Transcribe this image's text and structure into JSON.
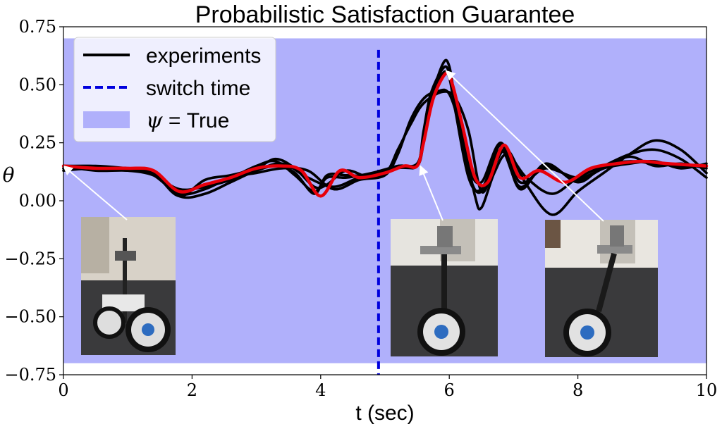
{
  "chart_data": {
    "type": "line",
    "title": "Probabilistic Satisfaction Guarantee",
    "xlabel": "t (sec)",
    "ylabel": "θ",
    "xlim": [
      0,
      10
    ],
    "ylim": [
      -0.75,
      0.75
    ],
    "x_ticks": [
      "0",
      "2",
      "4",
      "6",
      "8",
      "10"
    ],
    "y_ticks": [
      "0.75",
      "0.50",
      "0.25",
      "0.00",
      "−0.25",
      "−0.50",
      "−0.75"
    ],
    "x_tick_values": [
      0,
      2,
      4,
      6,
      8,
      10
    ],
    "y_tick_values": [
      0.75,
      0.5,
      0.25,
      0,
      -0.25,
      -0.5,
      -0.75
    ],
    "region": {
      "label_math": "ψ",
      "label_eq": " = ",
      "label_text": "True",
      "ymin": -0.7,
      "ymax": 0.7,
      "color": "#b0b0fb"
    },
    "switch_time": 4.9,
    "legend": {
      "position": "top-left",
      "entries": [
        "experiments",
        "switch time",
        "ψ = True"
      ]
    },
    "colors": {
      "experiments": "#000000",
      "switch": "#0000dd",
      "mean": "#e8000b",
      "region": "#b0b0fb"
    },
    "series": [
      {
        "name": "experiments",
        "x": [
          0,
          0.5,
          1,
          1.4,
          1.8,
          2.2,
          2.6,
          3,
          3.3,
          3.6,
          3.9,
          4.1,
          4.4,
          4.8,
          5.2,
          5.5,
          5.6,
          5.7,
          5.9,
          6,
          6.1,
          6.3,
          6.5,
          6.8,
          7.1,
          7.5,
          8,
          8.4,
          8.8,
          9.2,
          9.6,
          10
        ],
        "y": [
          0.15,
          0.15,
          0.14,
          0.13,
          0.04,
          0.07,
          0.1,
          0.15,
          0.17,
          0.11,
          0.04,
          0.1,
          0.1,
          0.12,
          0.15,
          0.16,
          0.28,
          0.45,
          0.57,
          0.55,
          0.4,
          0.12,
          0.04,
          0.24,
          0.05,
          0.16,
          0.08,
          0.15,
          0.17,
          0.16,
          0.15,
          0.15
        ]
      },
      {
        "name": "experiments",
        "x": [
          0,
          0.5,
          1,
          1.4,
          1.8,
          2.2,
          2.6,
          3,
          3.3,
          3.6,
          3.9,
          4.1,
          4.4,
          4.8,
          5.2,
          5.5,
          5.6,
          5.7,
          5.9,
          6,
          6.1,
          6.3,
          6.5,
          6.8,
          7.1,
          7.5,
          8,
          8.4,
          8.8,
          9.2,
          9.6,
          10
        ],
        "y": [
          0.14,
          0.14,
          0.14,
          0.12,
          0.02,
          0.09,
          0.11,
          0.14,
          0.18,
          0.14,
          0.06,
          0.07,
          0.13,
          0.1,
          0.14,
          0.15,
          0.25,
          0.42,
          0.59,
          0.58,
          0.42,
          0.15,
          0.08,
          0.25,
          0.08,
          0.14,
          0.1,
          0.14,
          0.19,
          0.15,
          0.16,
          0.14
        ]
      },
      {
        "name": "experiments",
        "x": [
          0,
          0.5,
          1,
          1.4,
          1.8,
          2.2,
          2.6,
          3,
          3.3,
          3.6,
          3.9,
          4.1,
          4.4,
          4.8,
          5.2,
          5.5,
          5.6,
          5.7,
          5.9,
          6,
          6.1,
          6.3,
          6.5,
          6.8,
          7.1,
          7.5,
          8,
          8.4,
          8.8,
          9.2,
          9.6,
          10
        ],
        "y": [
          0.15,
          0.13,
          0.13,
          0.11,
          0.05,
          0.06,
          0.09,
          0.13,
          0.15,
          0.12,
          0.03,
          0.11,
          0.11,
          0.11,
          0.15,
          0.15,
          0.3,
          0.44,
          0.55,
          0.53,
          0.38,
          0.1,
          0.05,
          0.22,
          0.06,
          0.15,
          0.09,
          0.14,
          0.16,
          0.17,
          0.14,
          0.16
        ]
      },
      {
        "name": "experiments",
        "x": [
          0,
          0.5,
          1,
          1.4,
          1.8,
          2.2,
          2.6,
          3,
          3.4,
          3.8,
          4.2,
          4.6,
          5,
          5.2,
          5.4,
          5.6,
          5.9,
          6.1,
          6.3,
          6.5,
          6.7,
          6.9,
          7.2,
          7.6,
          8,
          8.4,
          8.8,
          9.2,
          9.6,
          10
        ],
        "y": [
          0.13,
          0.14,
          0.13,
          0.12,
          0.02,
          0.03,
          0.08,
          0.13,
          0.16,
          0.1,
          0.06,
          0.1,
          0.12,
          0.22,
          0.33,
          0.42,
          0.47,
          0.44,
          0.3,
          0.04,
          0.15,
          0.22,
          0.07,
          -0.06,
          0.04,
          0.12,
          0.2,
          0.26,
          0.22,
          0.12
        ]
      },
      {
        "name": "experiments",
        "x": [
          0,
          0.5,
          1,
          1.4,
          1.8,
          2.2,
          2.6,
          3,
          3.4,
          3.8,
          4.2,
          4.6,
          5,
          5.2,
          5.4,
          5.6,
          5.8,
          6,
          6.2,
          6.4,
          6.5,
          6.7,
          6.9,
          7.2,
          7.6,
          8,
          8.4,
          8.8,
          9.2,
          9.6,
          10
        ],
        "y": [
          0.14,
          0.14,
          0.14,
          0.11,
          0.03,
          0.05,
          0.1,
          0.12,
          0.14,
          0.13,
          0.05,
          0.09,
          0.11,
          0.2,
          0.35,
          0.44,
          0.47,
          0.46,
          0.28,
          0.02,
          -0.03,
          0.12,
          0.2,
          0.1,
          0.03,
          0.1,
          0.15,
          0.2,
          0.22,
          0.18,
          0.1
        ]
      },
      {
        "name": "mean",
        "x": [
          0,
          0.5,
          1,
          1.4,
          1.8,
          2.2,
          2.6,
          3,
          3.4,
          3.7,
          4,
          4.3,
          4.6,
          5,
          5.3,
          5.5,
          5.6,
          5.75,
          5.95,
          6.05,
          6.2,
          6.4,
          6.6,
          6.85,
          7.1,
          7.4,
          7.8,
          8.2,
          8.6,
          9,
          9.4,
          10
        ],
        "y": [
          0.15,
          0.14,
          0.14,
          0.13,
          0.04,
          0.07,
          0.1,
          0.14,
          0.15,
          0.13,
          0.02,
          0.13,
          0.1,
          0.12,
          0.15,
          0.15,
          0.25,
          0.44,
          0.55,
          0.5,
          0.33,
          0.1,
          0.08,
          0.24,
          0.1,
          0.13,
          0.08,
          0.14,
          0.16,
          0.17,
          0.16,
          0.15
        ]
      }
    ],
    "annotations": [
      {
        "name": "inset-start",
        "point": [
          0,
          0.15
        ],
        "label": ""
      },
      {
        "name": "inset-mid",
        "point": [
          5.55,
          0.15
        ],
        "label": ""
      },
      {
        "name": "inset-peak",
        "point": [
          5.95,
          0.56
        ],
        "label": ""
      }
    ]
  }
}
